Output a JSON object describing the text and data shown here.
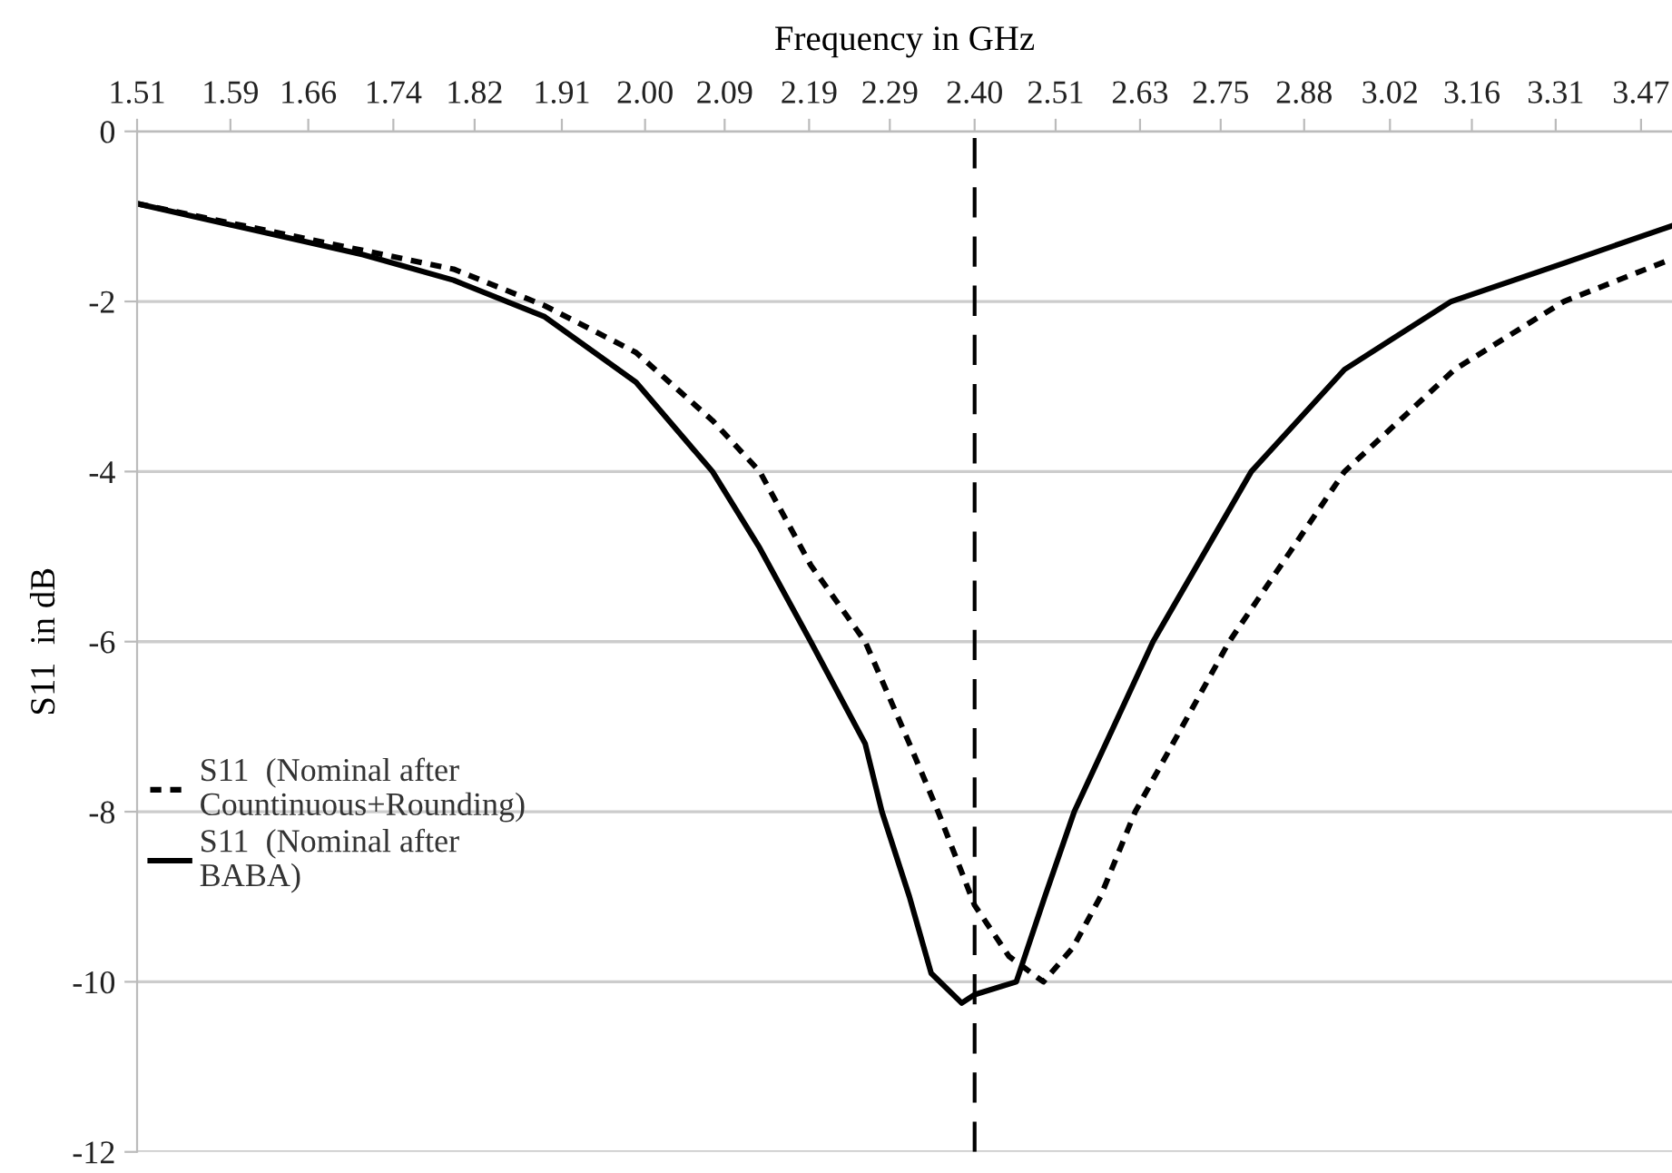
{
  "chart_data": {
    "type": "line",
    "xlabel": "Frequency in GHz",
    "ylabel": "S11  in dB",
    "log": "x",
    "xlim": [
      1.51,
      3.53
    ],
    "xticks": [
      1.51,
      1.59,
      1.66,
      1.74,
      1.82,
      1.91,
      {
        "value": 2.0,
        "label": "2.00"
      },
      2.09,
      2.19,
      2.29,
      {
        "value": 2.4,
        "label": "2.40"
      },
      2.51,
      2.63,
      2.75,
      2.88,
      3.02,
      3.16,
      3.31,
      3.47
    ],
    "ylim": [
      -12,
      0
    ],
    "yticks": [
      -12,
      -10,
      -8,
      -6,
      -4,
      -2,
      0
    ],
    "grid": "y",
    "legend": "left",
    "marker": "none",
    "series": [
      {
        "name": "S11  (Nominal after\nCountinuous+Rounding)",
        "color": "#000000",
        "line_style": "dotted",
        "x": [
          1.51,
          1.711,
          1.799,
          1.892,
          1.99,
          2.076,
          2.131,
          2.192,
          2.259,
          2.315,
          2.352,
          2.4,
          2.446,
          2.493,
          2.534,
          2.573,
          2.623,
          2.763,
          2.945,
          3.13,
          3.325,
          3.53
        ],
        "values": [
          -0.85,
          -1.4,
          -1.62,
          -2.05,
          -2.6,
          -3.4,
          -4.0,
          -5.1,
          -6.0,
          -7.2,
          -8.0,
          -9.1,
          -9.7,
          -10.0,
          -9.6,
          -9.0,
          -8.0,
          -6.0,
          -4.0,
          -2.8,
          -2.0,
          -1.5
        ]
      },
      {
        "name": "S11  (Nominal after\nBABA)",
        "color": "#000000",
        "line_style": "solid",
        "x": [
          1.51,
          1.711,
          1.799,
          1.892,
          1.99,
          2.076,
          2.131,
          2.192,
          2.259,
          2.28,
          2.315,
          2.343,
          2.383,
          2.4,
          2.456,
          2.495,
          2.536,
          2.649,
          2.797,
          2.945,
          3.124,
          3.325,
          3.53
        ],
        "values": [
          -0.85,
          -1.45,
          -1.75,
          -2.18,
          -2.95,
          -4.0,
          -4.9,
          -6.0,
          -7.2,
          -8.0,
          -9.0,
          -9.9,
          -10.25,
          -10.15,
          -10.0,
          -9.0,
          -8.0,
          -6.0,
          -4.0,
          -2.8,
          -2.0,
          -1.55,
          -1.11
        ]
      }
    ],
    "ref_lines": [
      {
        "axis": "x",
        "value": 2.4,
        "color": "#000000",
        "line_style": "dashed"
      }
    ]
  }
}
